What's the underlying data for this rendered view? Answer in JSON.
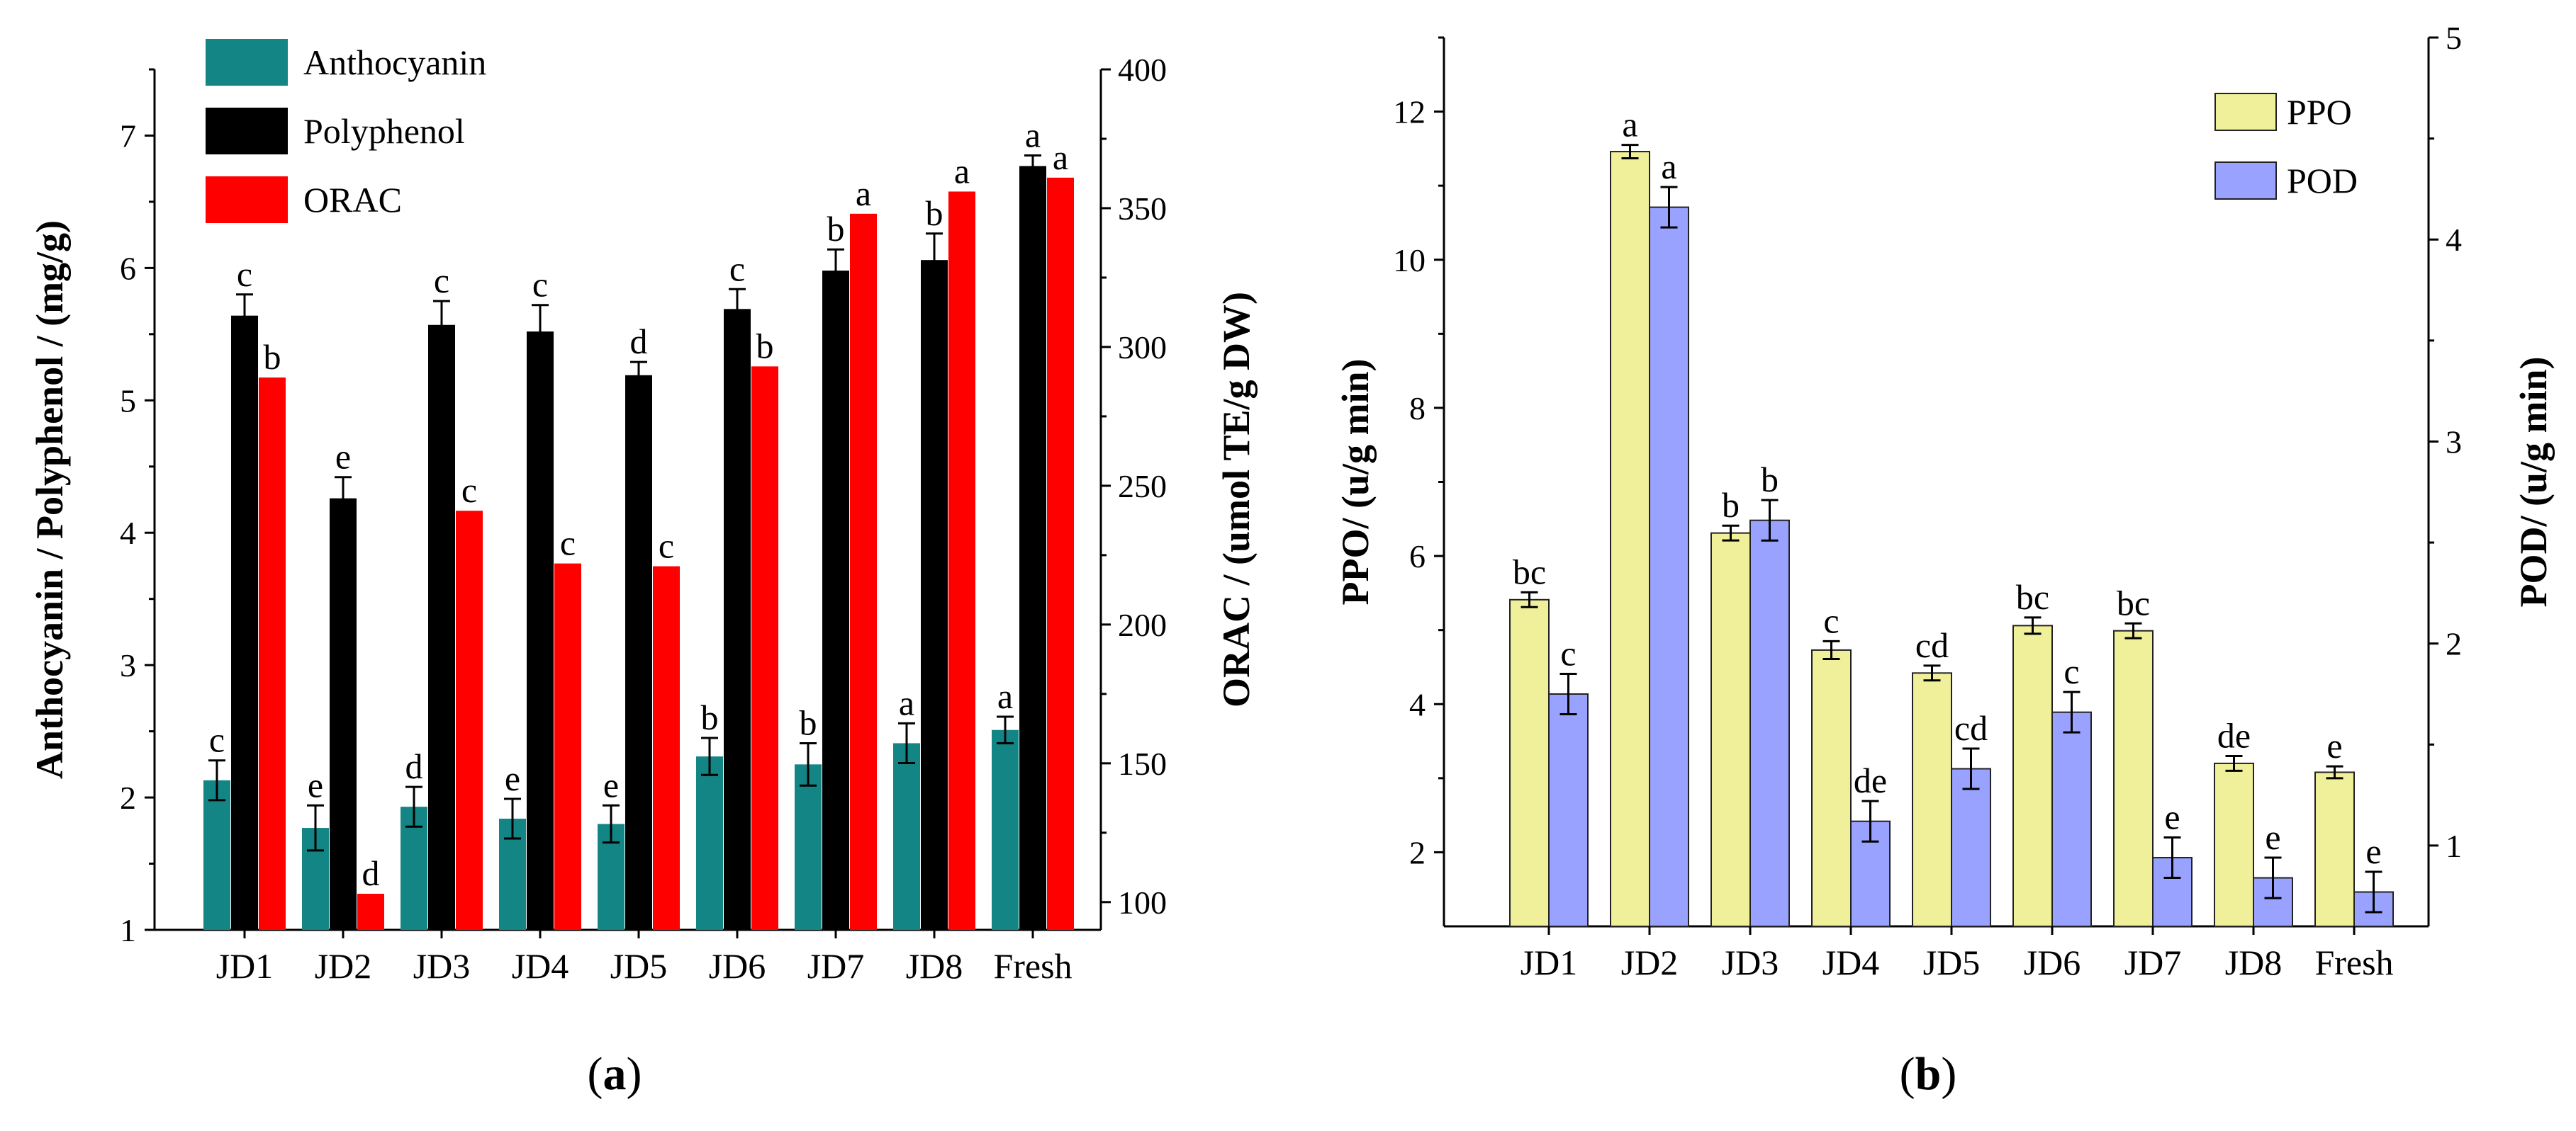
{
  "panel_labels": {
    "a": "a",
    "b": "b"
  },
  "chart_data": [
    {
      "type": "bar",
      "panel": "a",
      "categories": [
        "JD1",
        "JD2",
        "JD3",
        "JD4",
        "JD5",
        "JD6",
        "JD7",
        "JD8",
        "Fresh"
      ],
      "ylabel": "Anthocyanin / Polyphenol  / (mg/g)",
      "y2label": "ORAC / (umol TE/g DW)",
      "ylim": [
        1,
        7.5
      ],
      "yticks": [
        1,
        2,
        3,
        4,
        5,
        6,
        7
      ],
      "y2lim": [
        90,
        400
      ],
      "y2ticks": [
        100,
        150,
        200,
        250,
        300,
        350,
        400
      ],
      "series": [
        {
          "name": "Anthocyanin",
          "axis": "left",
          "color": "#138585",
          "values": [
            2.13,
            1.77,
            1.93,
            1.84,
            1.8,
            2.31,
            2.25,
            2.41,
            2.51
          ],
          "errors": [
            0.15,
            0.17,
            0.15,
            0.15,
            0.14,
            0.14,
            0.16,
            0.15,
            0.1
          ],
          "labels": [
            "c",
            "e",
            "d",
            "e",
            "e",
            "b",
            "b",
            "a",
            "a"
          ]
        },
        {
          "name": "Polyphenol",
          "axis": "left",
          "color": "#000000",
          "values": [
            5.64,
            4.26,
            5.57,
            5.52,
            5.19,
            5.69,
            5.98,
            6.06,
            6.77
          ],
          "errors": [
            0.16,
            0.16,
            0.18,
            0.2,
            0.1,
            0.15,
            0.16,
            0.2,
            0.08
          ],
          "labels": [
            "c",
            "e",
            "c",
            "c",
            "d",
            "c",
            "b",
            "b",
            "a"
          ]
        },
        {
          "name": "ORAC",
          "axis": "right",
          "color": "#ff0000",
          "values": [
            289,
            103,
            241,
            222,
            221,
            293,
            348,
            356,
            361
          ],
          "errors": [
            0,
            0,
            0,
            0,
            0,
            0,
            0,
            0,
            0
          ],
          "labels": [
            "b",
            "d",
            "c",
            "c",
            "c",
            "b",
            "a",
            "a",
            "a"
          ]
        }
      ]
    },
    {
      "type": "bar",
      "panel": "b",
      "categories": [
        "JD1",
        "JD2",
        "JD3",
        "JD4",
        "JD5",
        "JD6",
        "JD7",
        "JD8",
        "Fresh"
      ],
      "ylabel": "PPO/ (u/g min)",
      "y2label": "POD/ (u/g min)",
      "ylim": [
        1,
        13
      ],
      "yticks": [
        2,
        4,
        6,
        8,
        10,
        12
      ],
      "y2lim": [
        0.6,
        5
      ],
      "y2ticks": [
        1,
        2,
        3,
        4,
        5
      ],
      "series": [
        {
          "name": "PPO",
          "axis": "left",
          "color": "#f1f09a",
          "values": [
            5.41,
            11.46,
            6.31,
            4.73,
            4.42,
            5.06,
            4.99,
            3.2,
            3.08
          ],
          "errors": [
            0.1,
            0.09,
            0.1,
            0.12,
            0.1,
            0.11,
            0.1,
            0.1,
            0.08
          ],
          "labels": [
            "bc",
            "a",
            "b",
            "c",
            "cd",
            "bc",
            "bc",
            "de",
            "e"
          ]
        },
        {
          "name": "POD",
          "axis": "right",
          "color": "#9aa2ff",
          "values": [
            1.75,
            4.16,
            2.61,
            1.12,
            1.38,
            1.66,
            0.94,
            0.84,
            0.77
          ],
          "errors": [
            0.1,
            0.1,
            0.1,
            0.1,
            0.1,
            0.1,
            0.1,
            0.1,
            0.1
          ],
          "labels": [
            "c",
            "a",
            "b",
            "de",
            "cd",
            "c",
            "e",
            "e",
            "e"
          ]
        }
      ]
    }
  ]
}
